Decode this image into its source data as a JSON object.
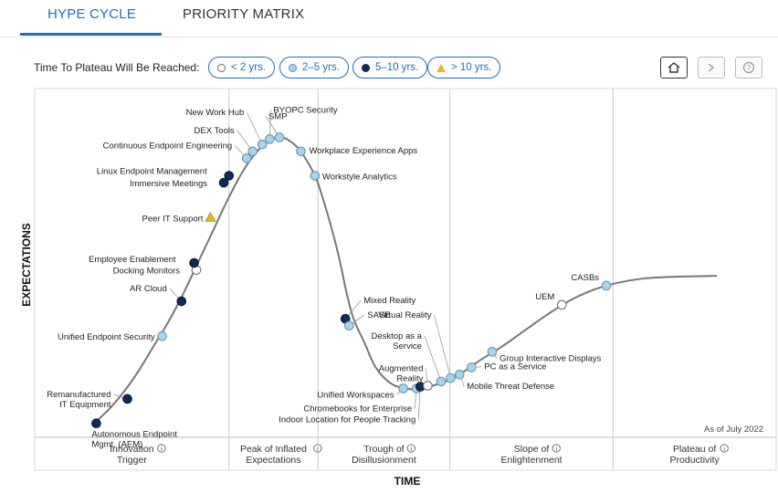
{
  "tabs": [
    {
      "label": "HYPE CYCLE",
      "active": true
    },
    {
      "label": "PRIORITY MATRIX",
      "active": false
    }
  ],
  "legend": {
    "title": "Time To Plateau Will Be Reached:",
    "items": [
      {
        "key": "lt2",
        "label": "< 2 yrs."
      },
      {
        "key": "2to5",
        "label": "2–5 yrs."
      },
      {
        "key": "5to10",
        "label": "5–10 yrs."
      },
      {
        "key": "gt10",
        "label": "> 10 yrs."
      }
    ]
  },
  "toolbar": {
    "buttons": [
      {
        "name": "home-button",
        "icon": "home-icon"
      },
      {
        "name": "pan-button",
        "icon": "chevron-icon"
      },
      {
        "name": "help-button",
        "icon": "help-icon"
      }
    ]
  },
  "colors": {
    "lt2": "#ffffff",
    "2to5": "#a9d3ea",
    "5to10": "#0e2c57",
    "gt10": "#e8b820",
    "accent": "#1f6fb8",
    "curve": "#777777"
  },
  "chart_data": {
    "type": "hype-cycle",
    "ylabel": "EXPECTATIONS",
    "xlabel": "TIME",
    "as_of": "As of July 2022",
    "phases": [
      {
        "label": [
          "Innovation",
          "Trigger"
        ],
        "from": 0.0,
        "to": 0.262
      },
      {
        "label": [
          "Peak of Inflated",
          "Expectations"
        ],
        "from": 0.262,
        "to": 0.382
      },
      {
        "label": [
          "Trough of",
          "Disillusionment"
        ],
        "from": 0.382,
        "to": 0.56
      },
      {
        "label": [
          "Slope of",
          "Enlightenment"
        ],
        "from": 0.56,
        "to": 0.78
      },
      {
        "label": [
          "Plateau of",
          "Productivity"
        ],
        "from": 0.78,
        "to": 1.0
      }
    ],
    "curve_points": [
      [
        0.08,
        0.04
      ],
      [
        0.1,
        0.08
      ],
      [
        0.12,
        0.13
      ],
      [
        0.14,
        0.19
      ],
      [
        0.16,
        0.26
      ],
      [
        0.18,
        0.33
      ],
      [
        0.2,
        0.41
      ],
      [
        0.22,
        0.5
      ],
      [
        0.24,
        0.59
      ],
      [
        0.26,
        0.68
      ],
      [
        0.28,
        0.76
      ],
      [
        0.3,
        0.82
      ],
      [
        0.32,
        0.855
      ],
      [
        0.33,
        0.86
      ],
      [
        0.34,
        0.855
      ],
      [
        0.355,
        0.83
      ],
      [
        0.365,
        0.8
      ],
      [
        0.38,
        0.74
      ],
      [
        0.395,
        0.64
      ],
      [
        0.41,
        0.52
      ],
      [
        0.42,
        0.42
      ],
      [
        0.43,
        0.34
      ],
      [
        0.445,
        0.27
      ],
      [
        0.46,
        0.2
      ],
      [
        0.48,
        0.155
      ],
      [
        0.5,
        0.14
      ],
      [
        0.52,
        0.138
      ],
      [
        0.54,
        0.15
      ],
      [
        0.56,
        0.165
      ],
      [
        0.58,
        0.19
      ],
      [
        0.6,
        0.22
      ],
      [
        0.63,
        0.26
      ],
      [
        0.66,
        0.305
      ],
      [
        0.69,
        0.35
      ],
      [
        0.72,
        0.39
      ],
      [
        0.75,
        0.42
      ],
      [
        0.78,
        0.44
      ],
      [
        0.82,
        0.455
      ],
      [
        0.86,
        0.46
      ],
      [
        0.9,
        0.462
      ],
      [
        0.92,
        0.463
      ]
    ],
    "points": [
      {
        "name": "Autonomous Endpoint Mgmt. (AEM)",
        "t": 0.083,
        "e": 0.04,
        "plateau": "5to10"
      },
      {
        "name": "Remanufactured IT Equipment",
        "t": 0.125,
        "e": 0.11,
        "plateau": "5to10"
      },
      {
        "name": "Unified Endpoint Security",
        "t": 0.172,
        "e": 0.29,
        "plateau": "2to5"
      },
      {
        "name": "AR Cloud",
        "t": 0.198,
        "e": 0.39,
        "plateau": "5to10"
      },
      {
        "name": "Docking Monitors",
        "t": 0.218,
        "e": 0.48,
        "plateau": "lt2"
      },
      {
        "name": "Employee Enablement",
        "t": 0.215,
        "e": 0.5,
        "plateau": "5to10"
      },
      {
        "name": "Peer IT Support",
        "t": 0.237,
        "e": 0.63,
        "plateau": "gt10"
      },
      {
        "name": "Immersive Meetings",
        "t": 0.255,
        "e": 0.73,
        "plateau": "5to10"
      },
      {
        "name": "Linux Endpoint Management",
        "t": 0.262,
        "e": 0.75,
        "plateau": "5to10"
      },
      {
        "name": "Continuous Endpoint Engineering",
        "t": 0.286,
        "e": 0.8,
        "plateau": "2to5"
      },
      {
        "name": "DEX Tools",
        "t": 0.294,
        "e": 0.82,
        "plateau": "2to5"
      },
      {
        "name": "New Work Hub",
        "t": 0.307,
        "e": 0.84,
        "plateau": "2to5"
      },
      {
        "name": "BYOPC Security",
        "t": 0.317,
        "e": 0.855,
        "plateau": "2to5"
      },
      {
        "name": "SMP",
        "t": 0.33,
        "e": 0.86,
        "plateau": "2to5"
      },
      {
        "name": "Workplace Experience Apps",
        "t": 0.359,
        "e": 0.82,
        "plateau": "2to5"
      },
      {
        "name": "Workstyle Analytics",
        "t": 0.378,
        "e": 0.75,
        "plateau": "2to5"
      },
      {
        "name": "Mixed Reality",
        "t": 0.419,
        "e": 0.34,
        "plateau": "5to10"
      },
      {
        "name": "SASE",
        "t": 0.424,
        "e": 0.32,
        "plateau": "2to5"
      },
      {
        "name": "Unified Workspaces",
        "t": 0.497,
        "e": 0.14,
        "plateau": "2to5"
      },
      {
        "name": "Chromebooks for Enterprise",
        "t": 0.515,
        "e": 0.14,
        "plateau": "2to5"
      },
      {
        "name": "Indoor Location for People Tracking",
        "t": 0.52,
        "e": 0.145,
        "plateau": "5to10"
      },
      {
        "name": "Augmented Reality",
        "t": 0.53,
        "e": 0.148,
        "plateau": "lt2"
      },
      {
        "name": "Desktop as a Service",
        "t": 0.548,
        "e": 0.16,
        "plateau": "2to5"
      },
      {
        "name": "Virtual Reality",
        "t": 0.561,
        "e": 0.17,
        "plateau": "2to5"
      },
      {
        "name": "Mobile Threat Defense",
        "t": 0.573,
        "e": 0.18,
        "plateau": "2to5"
      },
      {
        "name": "PC as a Service",
        "t": 0.589,
        "e": 0.2,
        "plateau": "2to5"
      },
      {
        "name": "Group Interactive Displays",
        "t": 0.617,
        "e": 0.245,
        "plateau": "2to5"
      },
      {
        "name": "UEM",
        "t": 0.711,
        "e": 0.38,
        "plateau": "lt2"
      },
      {
        "name": "CASBs",
        "t": 0.771,
        "e": 0.435,
        "plateau": "2to5"
      }
    ]
  }
}
